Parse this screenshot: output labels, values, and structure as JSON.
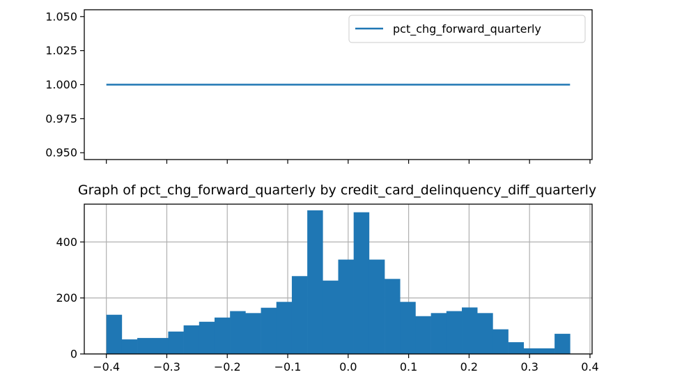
{
  "chart_data": [
    {
      "type": "line",
      "title": "",
      "xlabel": "",
      "ylabel": "",
      "ylim": [
        0.945,
        1.055
      ],
      "xlim": [
        -0.4365,
        0.4035
      ],
      "y_ticks": [
        0.95,
        0.975,
        1.0,
        1.025,
        1.05
      ],
      "y_tick_labels": [
        "0.950",
        "0.975",
        "1.000",
        "1.025",
        "1.050"
      ],
      "x_ticks": [
        -0.4,
        -0.3,
        -0.2,
        -0.1,
        0.0,
        0.1,
        0.2,
        0.3,
        0.4
      ],
      "x_tick_labels_visible": false,
      "grid": false,
      "legend_position": "top-right",
      "line_color": "#1f77b4",
      "series": [
        {
          "name": "pct_chg_forward_quarterly",
          "x": [
            -0.4,
            0.367
          ],
          "y": [
            1.0,
            1.0
          ]
        }
      ]
    },
    {
      "type": "bar",
      "subtype": "histogram",
      "title": "Graph of pct_chg_forward_quarterly by credit_card_delinquency_diff_quarterly",
      "xlabel": "",
      "ylabel": "",
      "xlim": [
        -0.4365,
        0.4035
      ],
      "ylim": [
        0,
        535
      ],
      "x_ticks": [
        -0.4,
        -0.3,
        -0.2,
        -0.1,
        0.0,
        0.1,
        0.2,
        0.3,
        0.4
      ],
      "x_tick_labels": [
        "−0.4",
        "−0.3",
        "−0.2",
        "−0.1",
        "0.0",
        "0.1",
        "0.2",
        "0.3",
        "0.4"
      ],
      "y_ticks": [
        0,
        200,
        400
      ],
      "y_tick_labels": [
        "0",
        "200",
        "400"
      ],
      "grid": true,
      "bar_color": "#1f77b4",
      "bin_start": -0.4,
      "bin_end": 0.367,
      "values": [
        140,
        52,
        57,
        57,
        80,
        102,
        115,
        130,
        153,
        146,
        165,
        186,
        278,
        513,
        262,
        337,
        506,
        337,
        268,
        186,
        135,
        146,
        153,
        166,
        146,
        88,
        42,
        20,
        20,
        72
      ]
    }
  ]
}
